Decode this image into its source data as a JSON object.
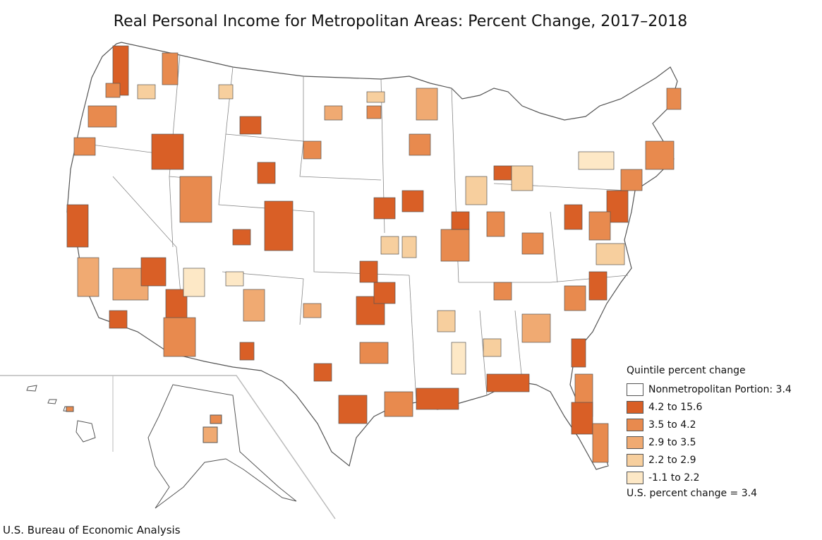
{
  "title": "Real Personal Income for Metropolitan Areas: Percent Change, 2017–2018",
  "legend": {
    "title": "Quintile percent change",
    "items": [
      {
        "label": "Nonmetropolitan Portion: 3.4",
        "color": "#ffffff"
      },
      {
        "label": "4.2 to 15.6",
        "color": "#d95f26"
      },
      {
        "label": "3.5 to 4.2",
        "color": "#e88a4e"
      },
      {
        "label": "2.9 to 3.5",
        "color": "#f0aa72"
      },
      {
        "label": "2.2 to 2.9",
        "color": "#f7cf9e"
      },
      {
        "label": "-1.1 to 2.2",
        "color": "#fde8c6"
      }
    ],
    "us_change": "U.S. percent change = 3.4"
  },
  "source": "U.S. Bureau of Economic Analysis",
  "colors": {
    "border": "#555555",
    "state_line": "#777777",
    "q1": "#d95f26",
    "q2": "#e88a4e",
    "q3": "#f0aa72",
    "q4": "#f7cf9e",
    "q5": "#fde8c6"
  }
}
